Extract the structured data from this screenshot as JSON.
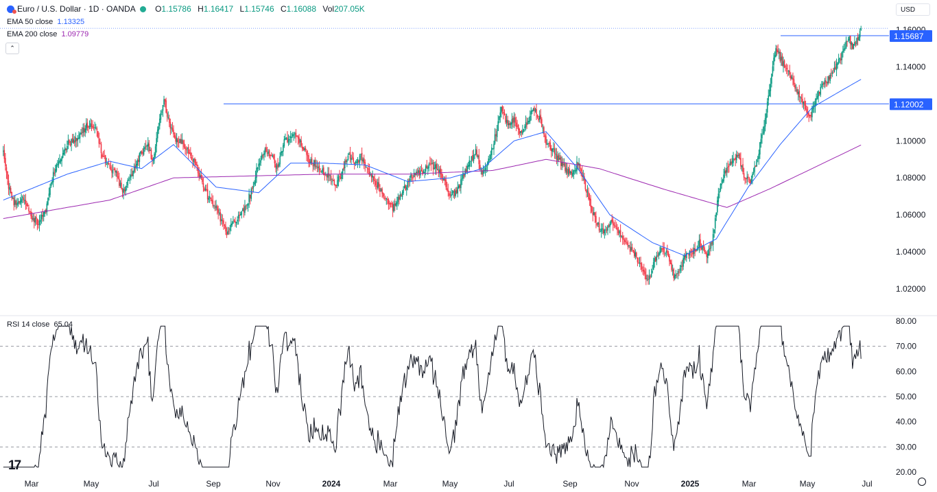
{
  "header": {
    "symbol": "Euro / U.S. Dollar · 1D · OANDA",
    "ohlc": [
      {
        "label": "O",
        "value": "1.15786"
      },
      {
        "label": "H",
        "value": "1.16417"
      },
      {
        "label": "L",
        "value": "1.15746"
      },
      {
        "label": "C",
        "value": "1.16088"
      },
      {
        "label": "Vol",
        "value": "207.05K"
      }
    ],
    "currency": "USD",
    "logo_icon": "tradingview-logo-icon",
    "settings_icon": "gear-icon"
  },
  "indicators": {
    "ema50": {
      "label": "EMA 50 close",
      "value": "1.13325",
      "color": "#2962ff"
    },
    "ema200": {
      "label": "EMA 200 close",
      "value": "1.09779",
      "color": "#9c27b0"
    },
    "rsi": {
      "label": "RSI 14 close",
      "value": "65.04",
      "color": "#131722"
    }
  },
  "colors": {
    "up": "#089981",
    "down": "#f23645",
    "hline": "#2962ff",
    "grid_dash": "#9598a1"
  },
  "chart_data": [
    {
      "type": "candlestick",
      "x_tick_labels": [
        "Mar",
        "May",
        "Jul",
        "Sep",
        "Nov",
        "2024",
        "Mar",
        "May",
        "Jul",
        "Sep",
        "Nov",
        "2025",
        "Mar",
        "May",
        "Jul"
      ],
      "y_tick_labels": [
        "1.02000",
        "1.04000",
        "1.06000",
        "1.08000",
        "1.10000",
        "1.12000",
        "1.14000",
        "1.16000"
      ],
      "ylim": [
        1.007,
        1.168
      ],
      "horizontal_lines": [
        {
          "value": 1.12002,
          "label": "1.12002"
        },
        {
          "value": 1.15687,
          "label": "1.15687"
        }
      ],
      "last_close": 1.16088,
      "anchors": [
        [
          0,
          1.095
        ],
        [
          5,
          1.075
        ],
        [
          10,
          1.066
        ],
        [
          18,
          1.068
        ],
        [
          25,
          1.061
        ],
        [
          32,
          1.055
        ],
        [
          40,
          1.063
        ],
        [
          48,
          1.084
        ],
        [
          55,
          1.093
        ],
        [
          62,
          1.099
        ],
        [
          70,
          1.101
        ],
        [
          78,
          1.108
        ],
        [
          86,
          1.108
        ],
        [
          94,
          1.091
        ],
        [
          100,
          1.085
        ],
        [
          106,
          1.082
        ],
        [
          112,
          1.072
        ],
        [
          118,
          1.078
        ],
        [
          124,
          1.087
        ],
        [
          130,
          1.094
        ],
        [
          136,
          1.098
        ],
        [
          140,
          1.088
        ],
        [
          146,
          1.108
        ],
        [
          151,
          1.122
        ],
        [
          156,
          1.11
        ],
        [
          162,
          1.101
        ],
        [
          168,
          1.099
        ],
        [
          174,
          1.094
        ],
        [
          180,
          1.088
        ],
        [
          186,
          1.079
        ],
        [
          192,
          1.07
        ],
        [
          198,
          1.066
        ],
        [
          204,
          1.058
        ],
        [
          210,
          1.05
        ],
        [
          216,
          1.055
        ],
        [
          222,
          1.06
        ],
        [
          228,
          1.065
        ],
        [
          234,
          1.074
        ],
        [
          240,
          1.089
        ],
        [
          246,
          1.094
        ],
        [
          252,
          1.092
        ],
        [
          258,
          1.085
        ],
        [
          264,
          1.1
        ],
        [
          270,
          1.102
        ],
        [
          276,
          1.103
        ],
        [
          282,
          1.095
        ],
        [
          288,
          1.089
        ],
        [
          294,
          1.087
        ],
        [
          300,
          1.084
        ],
        [
          306,
          1.08
        ],
        [
          312,
          1.077
        ],
        [
          318,
          1.082
        ],
        [
          324,
          1.092
        ],
        [
          330,
          1.089
        ],
        [
          336,
          1.091
        ],
        [
          342,
          1.085
        ],
        [
          348,
          1.08
        ],
        [
          354,
          1.074
        ],
        [
          360,
          1.067
        ],
        [
          366,
          1.064
        ],
        [
          372,
          1.069
        ],
        [
          378,
          1.075
        ],
        [
          384,
          1.081
        ],
        [
          390,
          1.083
        ],
        [
          396,
          1.084
        ],
        [
          402,
          1.087
        ],
        [
          408,
          1.085
        ],
        [
          414,
          1.078
        ],
        [
          420,
          1.071
        ],
        [
          426,
          1.072
        ],
        [
          432,
          1.081
        ],
        [
          438,
          1.089
        ],
        [
          444,
          1.094
        ],
        [
          450,
          1.083
        ],
        [
          456,
          1.089
        ],
        [
          462,
          1.102
        ],
        [
          468,
          1.117
        ],
        [
          474,
          1.109
        ],
        [
          480,
          1.111
        ],
        [
          486,
          1.104
        ],
        [
          492,
          1.11
        ],
        [
          498,
          1.118
        ],
        [
          504,
          1.112
        ],
        [
          510,
          1.1
        ],
        [
          516,
          1.095
        ],
        [
          522,
          1.09
        ],
        [
          528,
          1.085
        ],
        [
          534,
          1.082
        ],
        [
          540,
          1.088
        ],
        [
          546,
          1.078
        ],
        [
          552,
          1.065
        ],
        [
          558,
          1.055
        ],
        [
          564,
          1.05
        ],
        [
          570,
          1.056
        ],
        [
          576,
          1.053
        ],
        [
          582,
          1.046
        ],
        [
          588,
          1.042
        ],
        [
          594,
          1.038
        ],
        [
          600,
          1.031
        ],
        [
          606,
          1.025
        ],
        [
          612,
          1.035
        ],
        [
          618,
          1.041
        ],
        [
          624,
          1.039
        ],
        [
          630,
          1.027
        ],
        [
          636,
          1.03
        ],
        [
          642,
          1.04
        ],
        [
          648,
          1.039
        ],
        [
          654,
          1.045
        ],
        [
          660,
          1.038
        ],
        [
          666,
          1.045
        ],
        [
          672,
          1.071
        ],
        [
          678,
          1.083
        ],
        [
          684,
          1.089
        ],
        [
          690,
          1.093
        ],
        [
          696,
          1.082
        ],
        [
          702,
          1.077
        ],
        [
          708,
          1.09
        ],
        [
          714,
          1.105
        ],
        [
          720,
          1.128
        ],
        [
          726,
          1.151
        ],
        [
          730,
          1.145
        ],
        [
          736,
          1.138
        ],
        [
          742,
          1.132
        ],
        [
          748,
          1.125
        ],
        [
          754,
          1.118
        ],
        [
          758,
          1.112
        ],
        [
          764,
          1.123
        ],
        [
          770,
          1.13
        ],
        [
          776,
          1.134
        ],
        [
          782,
          1.14
        ],
        [
          788,
          1.146
        ],
        [
          794,
          1.156
        ],
        [
          798,
          1.15
        ],
        [
          802,
          1.155
        ],
        [
          806,
          1.161
        ]
      ],
      "ema50_anchors": [
        [
          0,
          1.068
        ],
        [
          60,
          1.082
        ],
        [
          100,
          1.089
        ],
        [
          130,
          1.085
        ],
        [
          160,
          1.098
        ],
        [
          200,
          1.075
        ],
        [
          240,
          1.072
        ],
        [
          270,
          1.088
        ],
        [
          300,
          1.088
        ],
        [
          340,
          1.087
        ],
        [
          380,
          1.078
        ],
        [
          420,
          1.08
        ],
        [
          450,
          1.085
        ],
        [
          480,
          1.1
        ],
        [
          510,
          1.105
        ],
        [
          540,
          1.085
        ],
        [
          570,
          1.06
        ],
        [
          610,
          1.045
        ],
        [
          640,
          1.038
        ],
        [
          670,
          1.047
        ],
        [
          700,
          1.075
        ],
        [
          730,
          1.098
        ],
        [
          760,
          1.118
        ],
        [
          790,
          1.128
        ],
        [
          806,
          1.13325
        ]
      ],
      "ema200_anchors": [
        [
          0,
          1.058
        ],
        [
          100,
          1.068
        ],
        [
          160,
          1.08
        ],
        [
          230,
          1.081
        ],
        [
          300,
          1.082
        ],
        [
          380,
          1.082
        ],
        [
          460,
          1.084
        ],
        [
          510,
          1.09
        ],
        [
          560,
          1.085
        ],
        [
          620,
          1.074
        ],
        [
          680,
          1.064
        ],
        [
          720,
          1.074
        ],
        [
          760,
          1.085
        ],
        [
          806,
          1.09779
        ]
      ]
    },
    {
      "type": "line",
      "series_label": "RSI 14 close",
      "y_tick_labels": [
        "20.00",
        "30.00",
        "40.00",
        "50.00",
        "60.00",
        "70.00",
        "80.00"
      ],
      "ylim": [
        20,
        80
      ],
      "bands": [
        30,
        50,
        70
      ],
      "last_value": 65.04
    }
  ]
}
